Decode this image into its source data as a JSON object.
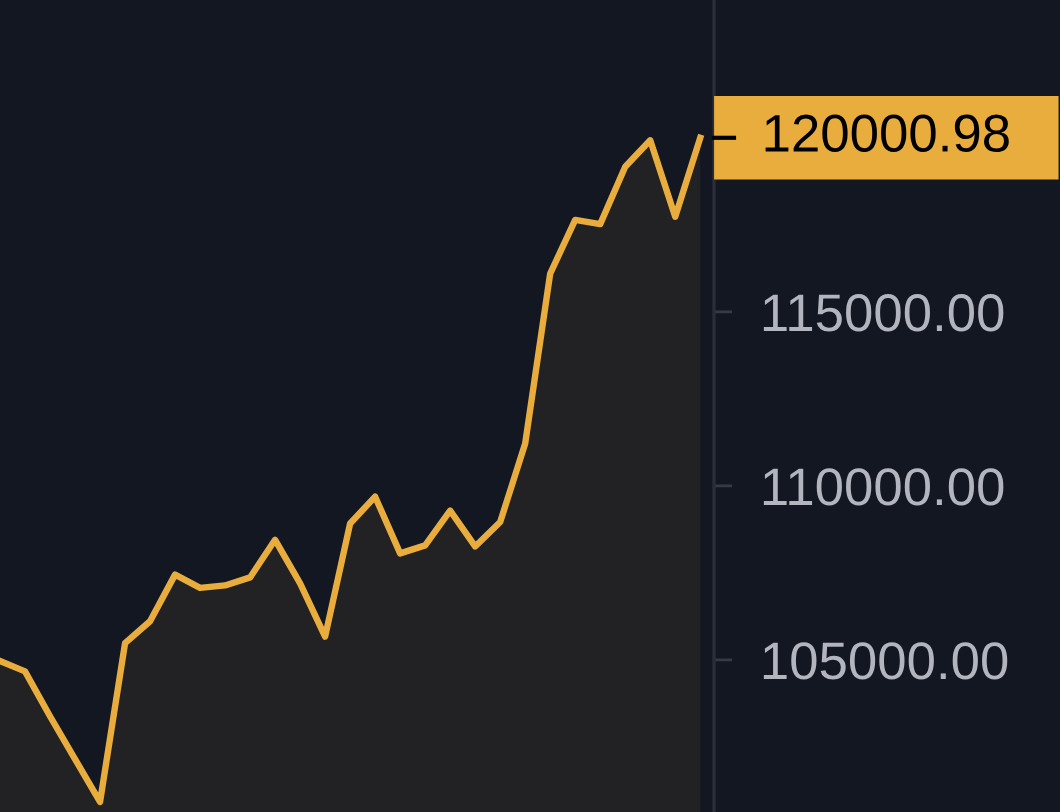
{
  "chart_data": {
    "type": "area",
    "categories": [
      null,
      null,
      null,
      null,
      null,
      null,
      null,
      null,
      null,
      null,
      null,
      null,
      null,
      null,
      null,
      null,
      null,
      null,
      null,
      null,
      null,
      null,
      null,
      null,
      null,
      null,
      null,
      null,
      null
    ],
    "series": [
      {
        "color": "#e9ad3d",
        "values": [
          104970,
          104670,
          103380,
          102150,
          100920,
          105480,
          106110,
          107450,
          107070,
          107140,
          107370,
          108450,
          107200,
          105670,
          108920,
          109690,
          108060,
          108290,
          109290,
          108260,
          108960,
          111220,
          116100,
          117640,
          117520,
          119170,
          119930,
          117730,
          120000.98
        ],
        "value_labels": [
          null,
          null,
          null,
          null,
          null,
          null,
          null,
          null,
          null,
          null,
          null,
          null,
          null,
          null,
          null,
          null,
          null,
          null,
          null,
          null,
          null,
          null,
          null,
          null,
          null,
          null,
          null,
          null,
          "120000.98"
        ]
      }
    ],
    "ylim": [
      100630,
      123960
    ],
    "yticks": [
      {
        "value": 105000,
        "label": "105000.00"
      },
      {
        "value": 110000,
        "label": "110000.00"
      },
      {
        "value": 115000,
        "label": "115000.00"
      }
    ],
    "grid": false,
    "marker": "none",
    "line_style": "solid"
  }
}
